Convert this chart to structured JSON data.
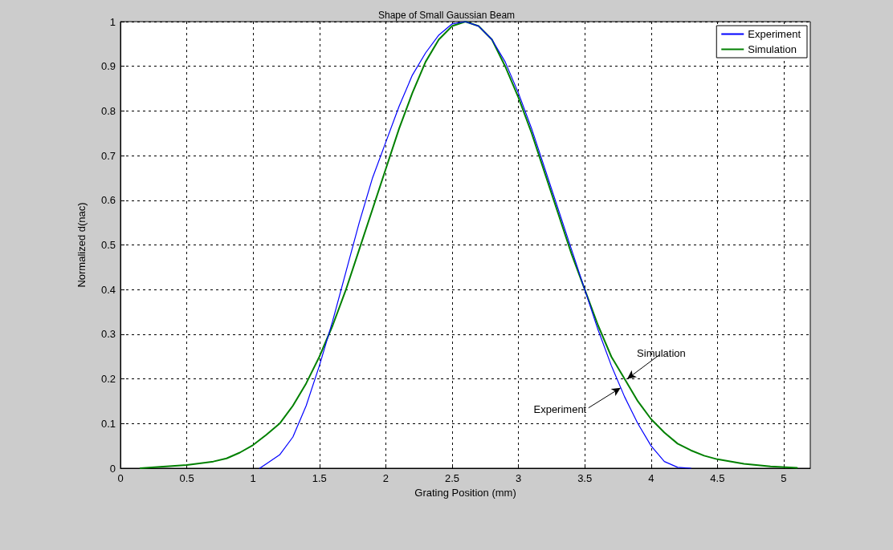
{
  "chart_data": {
    "type": "line",
    "title": "Shape of Small Gaussian Beam",
    "xlabel": "Grating Position (mm)",
    "ylabel": "Normalized d(nac)",
    "xlim": [
      0,
      5.2
    ],
    "xticks": [
      0,
      0.5,
      1,
      1.5,
      2,
      2.5,
      3,
      3.5,
      4,
      4.5,
      5
    ],
    "ylim": [
      0,
      1
    ],
    "yticks": [
      0,
      0.1,
      0.2,
      0.3,
      0.4,
      0.5,
      0.6,
      0.7,
      0.8,
      0.9,
      1
    ],
    "grid": true,
    "legend": "top right",
    "marker": "none",
    "line_style": "solid",
    "series": [
      {
        "name": "Experiment",
        "color": "#0000ff",
        "x": [
          1.05,
          1.1,
          1.2,
          1.3,
          1.4,
          1.5,
          1.6,
          1.7,
          1.8,
          1.9,
          2.0,
          2.1,
          2.2,
          2.3,
          2.4,
          2.5,
          2.6,
          2.7,
          2.8,
          2.9,
          3.0,
          3.1,
          3.2,
          3.3,
          3.4,
          3.5,
          3.6,
          3.7,
          3.8,
          3.9,
          4.0,
          4.1,
          4.2,
          4.3
        ],
        "values": [
          0,
          0.01,
          0.03,
          0.07,
          0.14,
          0.23,
          0.33,
          0.44,
          0.55,
          0.65,
          0.73,
          0.81,
          0.88,
          0.93,
          0.97,
          0.995,
          1,
          0.99,
          0.96,
          0.91,
          0.84,
          0.76,
          0.67,
          0.58,
          0.49,
          0.4,
          0.31,
          0.23,
          0.16,
          0.1,
          0.05,
          0.015,
          0.002,
          0
        ]
      },
      {
        "name": "Simulation",
        "color": "#008000",
        "x": [
          0.15,
          0.3,
          0.5,
          0.7,
          0.8,
          0.9,
          1.0,
          1.1,
          1.2,
          1.3,
          1.4,
          1.5,
          1.6,
          1.7,
          1.8,
          1.9,
          2.0,
          2.1,
          2.2,
          2.3,
          2.4,
          2.5,
          2.6,
          2.7,
          2.8,
          2.9,
          3.0,
          3.1,
          3.2,
          3.3,
          3.4,
          3.5,
          3.6,
          3.7,
          3.8,
          3.9,
          4.0,
          4.1,
          4.2,
          4.3,
          4.4,
          4.5,
          4.7,
          4.9,
          5.1
        ],
        "values": [
          0,
          0.003,
          0.007,
          0.015,
          0.022,
          0.035,
          0.052,
          0.075,
          0.1,
          0.14,
          0.19,
          0.25,
          0.32,
          0.4,
          0.49,
          0.58,
          0.67,
          0.76,
          0.84,
          0.91,
          0.96,
          0.99,
          1,
          0.99,
          0.96,
          0.9,
          0.83,
          0.75,
          0.66,
          0.57,
          0.48,
          0.4,
          0.32,
          0.25,
          0.2,
          0.15,
          0.11,
          0.08,
          0.055,
          0.04,
          0.028,
          0.02,
          0.01,
          0.004,
          0.001
        ]
      }
    ],
    "annotations": [
      {
        "text": "Simulation",
        "x": 3.82,
        "y": 0.2
      },
      {
        "text": "Experiment",
        "x": 3.77,
        "y": 0.18
      }
    ]
  }
}
